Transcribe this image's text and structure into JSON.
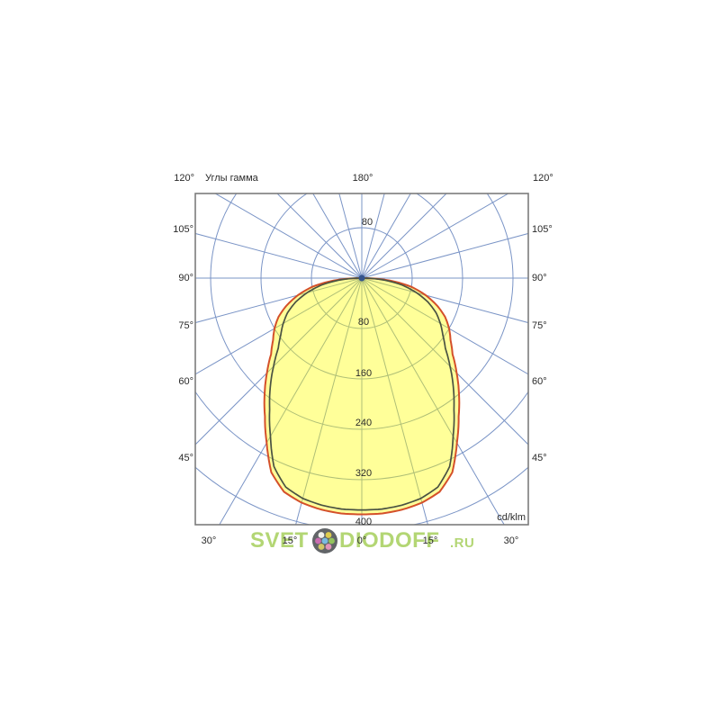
{
  "labels": {
    "axis_title": "Углы гамма",
    "unit": "cd/klm",
    "top_row": [
      "120°",
      "180°",
      "120°"
    ],
    "left_column": [
      "105°",
      "90°",
      "75°",
      "60°",
      "45°"
    ],
    "right_column": [
      "105°",
      "90°",
      "75°",
      "60°",
      "45°"
    ],
    "bottom_row": [
      "30°",
      "15°",
      "0°",
      "15°",
      "30°"
    ]
  },
  "chart_data": {
    "type": "polar_photometric",
    "title": "Углы гамма",
    "unit": "cd/klm",
    "angle_ticks_deg": [
      0,
      15,
      30,
      45,
      60,
      75,
      90,
      105,
      120,
      180
    ],
    "radial_ticks": [
      80,
      160,
      240,
      320,
      400
    ],
    "radial_range": [
      0,
      400
    ],
    "grid": {
      "angle_step_deg": 15,
      "radial_step": 80,
      "color": "#7a94c6"
    },
    "gamma_deg": [
      0,
      5,
      10,
      15,
      20,
      25,
      30,
      35,
      40,
      45,
      50,
      55,
      60,
      65,
      70,
      75,
      80,
      85,
      90
    ],
    "series": [
      {
        "name": "outer_curve",
        "color": "#d4502a",
        "fill": "#ffff00",
        "values": [
          375,
          375,
          373,
          369,
          361,
          340,
          302,
          268,
          240,
          213,
          188,
          172,
          160,
          146,
          127,
          105,
          80,
          45,
          5
        ]
      },
      {
        "name": "inner_curve",
        "color": "#4a5242",
        "values": [
          368,
          368,
          366,
          362,
          353,
          330,
          290,
          255,
          226,
          198,
          173,
          157,
          144,
          130,
          112,
          90,
          66,
          35,
          3
        ]
      }
    ],
    "colors": {
      "border": "#7c7c7c",
      "center_dot": "#35548c",
      "text": "#2a2a2a"
    }
  },
  "watermark": {
    "part1": "SVET",
    "part2": "DIODOFF",
    "suffix": ".RU",
    "logo_icon": "flower-dots-logo",
    "color": "#a6cf5c"
  }
}
